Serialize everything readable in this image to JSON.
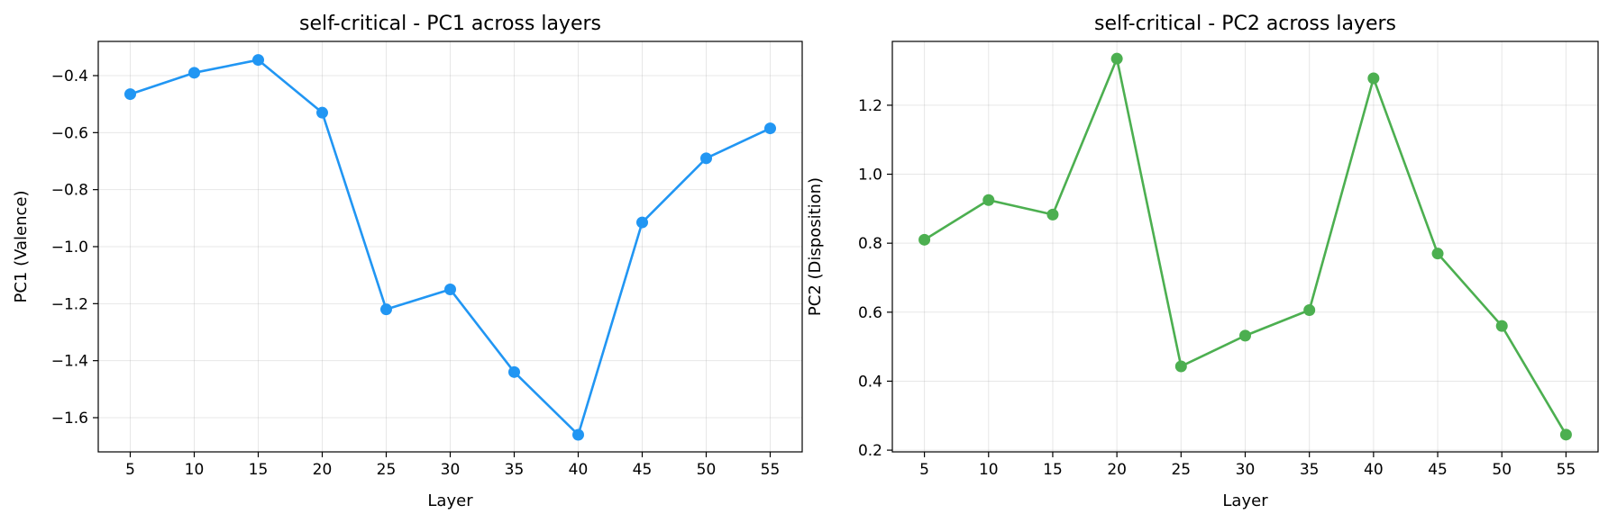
{
  "chart_data": [
    {
      "type": "line",
      "title": "self-critical - PC1 across layers",
      "xlabel": "Layer",
      "ylabel": "PC1 (Valence)",
      "x": [
        5,
        10,
        15,
        20,
        25,
        30,
        35,
        40,
        45,
        50,
        55
      ],
      "xticks": [
        5,
        10,
        15,
        20,
        25,
        30,
        35,
        40,
        45,
        50,
        55
      ],
      "xlim": [
        2.5,
        57.5
      ],
      "ylim": [
        -1.72,
        -0.28
      ],
      "yticks": [
        -1.6,
        -1.4,
        -1.2,
        -1.0,
        -0.8,
        -0.6,
        -0.4
      ],
      "ytick_labels": [
        "−1.6",
        "−1.4",
        "−1.2",
        "−1.0",
        "−0.8",
        "−0.6",
        "−0.4"
      ],
      "grid": true,
      "series": [
        {
          "values": [
            -0.465,
            -0.39,
            -0.345,
            -0.53,
            -1.22,
            -1.15,
            -1.44,
            -1.66,
            -0.915,
            -0.69,
            -0.585
          ],
          "color": "#2196F3"
        }
      ]
    },
    {
      "type": "line",
      "title": "self-critical - PC2 across layers",
      "xlabel": "Layer",
      "ylabel": "PC2 (Disposition)",
      "x": [
        5,
        10,
        15,
        20,
        25,
        30,
        35,
        40,
        45,
        50,
        55
      ],
      "xticks": [
        5,
        10,
        15,
        20,
        25,
        30,
        35,
        40,
        45,
        50,
        55
      ],
      "xlim": [
        2.5,
        57.5
      ],
      "ylim": [
        0.195,
        1.385
      ],
      "yticks": [
        0.2,
        0.4,
        0.6,
        0.8,
        1.0,
        1.2
      ],
      "ytick_labels": [
        "0.2",
        "0.4",
        "0.6",
        "0.8",
        "1.0",
        "1.2"
      ],
      "grid": true,
      "series": [
        {
          "values": [
            0.81,
            0.925,
            0.883,
            1.335,
            0.443,
            0.532,
            0.606,
            1.278,
            0.77,
            0.56,
            0.245
          ],
          "color": "#4CAF50"
        }
      ]
    }
  ]
}
